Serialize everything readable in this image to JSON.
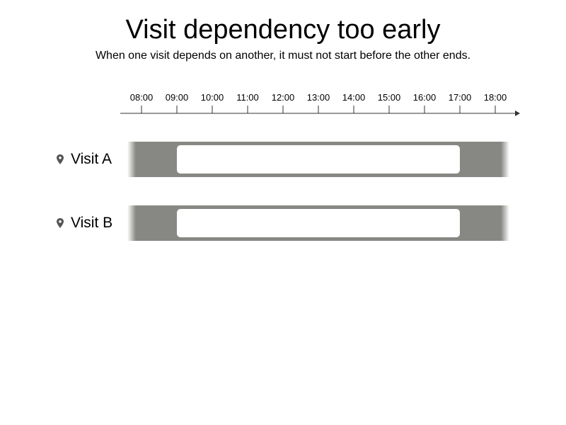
{
  "title": "Visit dependency too early",
  "subtitle": "When one visit depends on another, it must not start before the other ends.",
  "timeline": {
    "ticks": [
      "08:00",
      "09:00",
      "10:00",
      "11:00",
      "12:00",
      "13:00",
      "14:00",
      "15:00",
      "16:00",
      "17:00",
      "18:00"
    ]
  },
  "visits": [
    {
      "label": "Visit A",
      "icon": "map-pin-icon",
      "window_start": "09:00",
      "window_end": "17:00"
    },
    {
      "label": "Visit B",
      "icon": "map-pin-icon",
      "window_start": "09:00",
      "window_end": "17:00"
    }
  ],
  "colors": {
    "band": "#878783",
    "slot": "#ffffff",
    "axis": "#333333",
    "pin": "#555555"
  }
}
